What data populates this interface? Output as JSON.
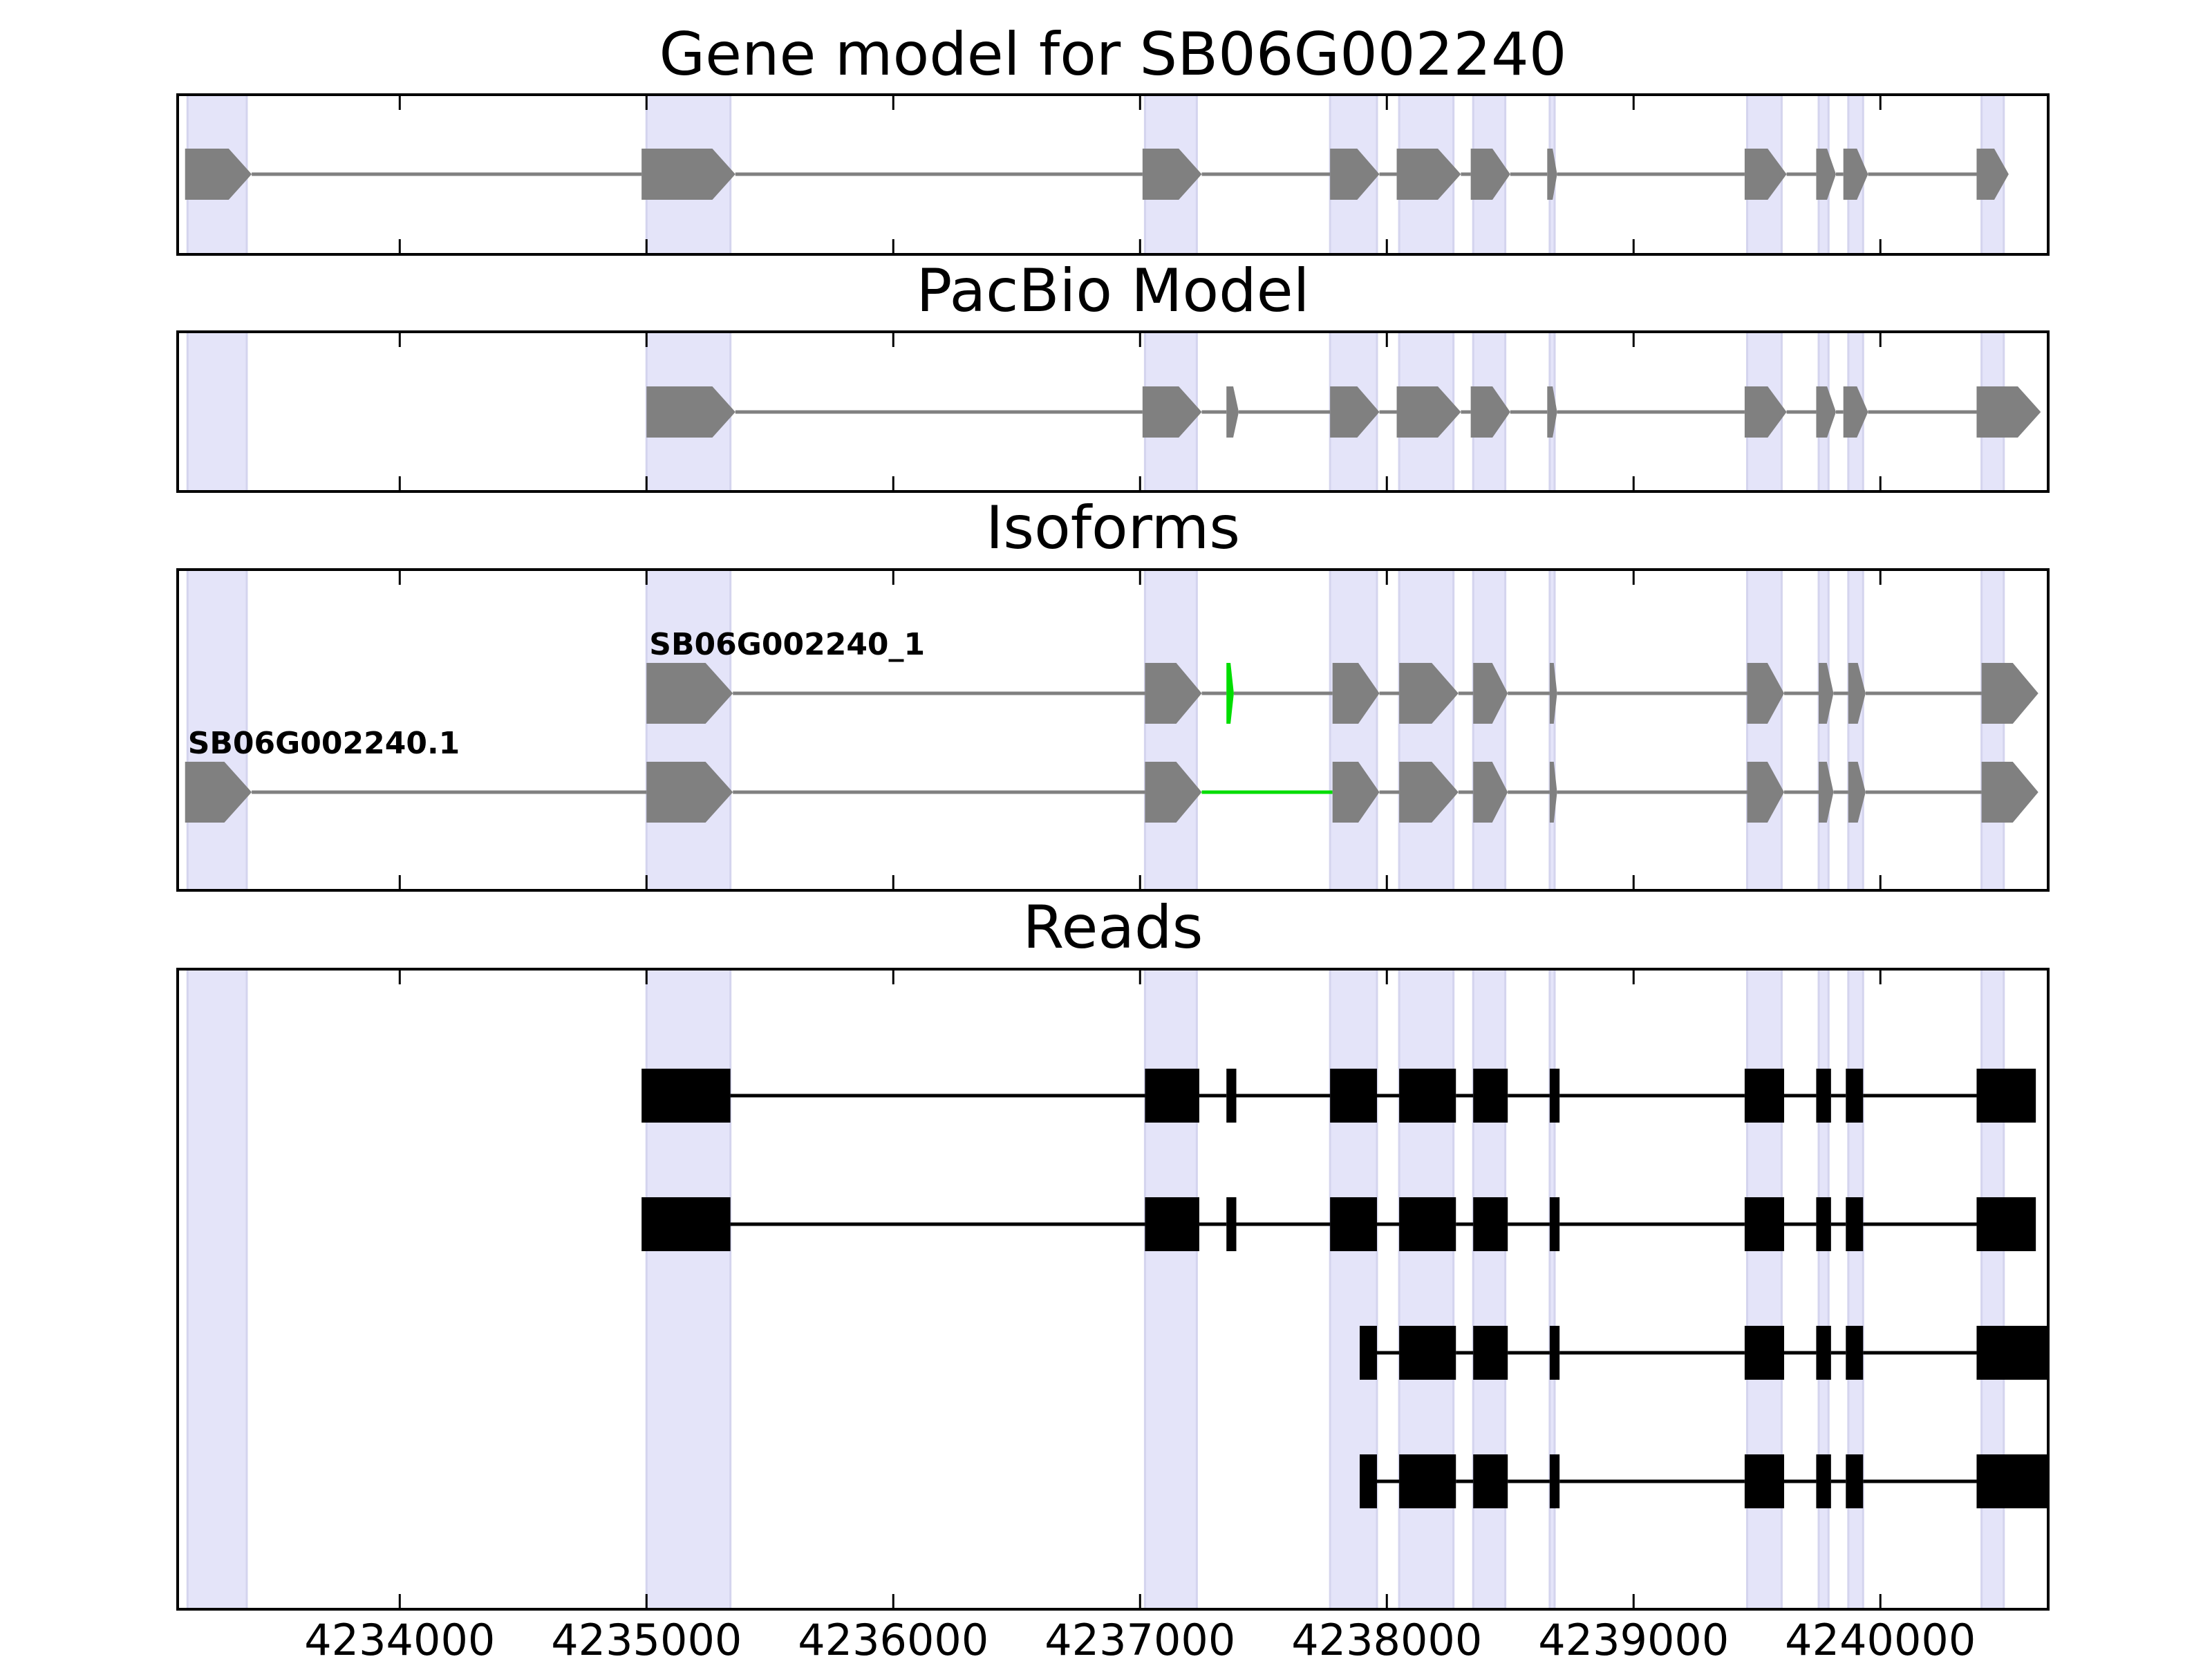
{
  "chart_data": {
    "type": "gene-track",
    "xlim": [
      4233100,
      4240680
    ],
    "xticks": [
      4234000,
      4235000,
      4236000,
      4237000,
      4238000,
      4239000,
      4240000
    ],
    "xtick_labels": [
      "4234000",
      "4235000",
      "4236000",
      "4237000",
      "4238000",
      "4239000",
      "4240000"
    ],
    "highlight_regions": [
      [
        4233140,
        4233380
      ],
      [
        4235000,
        4235340
      ],
      [
        4237020,
        4237230
      ],
      [
        4237770,
        4237960
      ],
      [
        4238050,
        4238270
      ],
      [
        4238350,
        4238480
      ],
      [
        4238660,
        4238680
      ],
      [
        4239460,
        4239600
      ],
      [
        4239750,
        4239790
      ],
      [
        4239870,
        4239930
      ],
      [
        4240410,
        4240500
      ]
    ],
    "colors": {
      "highlight": "#e4e4f9",
      "feature": "#808080",
      "read": "#000000",
      "alt_junction": "#00dd00"
    },
    "panels": [
      {
        "title": "Gene model for SB06G002240",
        "tracks": [
          {
            "label": "",
            "exons": [
              [
                4233130,
                4233400
              ],
              [
                4234980,
                4235360
              ],
              [
                4237010,
                4237250
              ],
              [
                4237770,
                4237970
              ],
              [
                4238040,
                4238300
              ],
              [
                4238340,
                4238500
              ],
              [
                4238650,
                4238690
              ],
              [
                4239450,
                4239620
              ],
              [
                4239740,
                4239820
              ],
              [
                4239850,
                4239950
              ],
              [
                4240390,
                4240520
              ]
            ]
          }
        ]
      },
      {
        "title": "PacBio Model",
        "tracks": [
          {
            "label": "",
            "exons": [
              [
                4235000,
                4235360
              ],
              [
                4237010,
                4237250
              ],
              [
                4237350,
                4237400
              ],
              [
                4237770,
                4237970
              ],
              [
                4238040,
                4238300
              ],
              [
                4238340,
                4238500
              ],
              [
                4238650,
                4238690
              ],
              [
                4239450,
                4239620
              ],
              [
                4239740,
                4239820
              ],
              [
                4239850,
                4239950
              ],
              [
                4240390,
                4240650
              ]
            ]
          }
        ]
      },
      {
        "title": "Isoforms",
        "tracks": [
          {
            "label": "SB06G002240_1",
            "exons": [
              [
                4235000,
                4235350
              ],
              [
                4237020,
                4237250
              ],
              [
                4237350,
                4237380
              ],
              [
                4237780,
                4237970
              ],
              [
                4238050,
                4238290
              ],
              [
                4238350,
                4238490
              ],
              [
                4238660,
                4238690
              ],
              [
                4239460,
                4239610
              ],
              [
                4239750,
                4239810
              ],
              [
                4239870,
                4239940
              ],
              [
                4240410,
                4240640
              ]
            ],
            "highlight_exons": [
              2
            ]
          },
          {
            "label": "SB06G002240.1",
            "exons": [
              [
                4233130,
                4233400
              ],
              [
                4235000,
                4235350
              ],
              [
                4237020,
                4237250
              ],
              [
                4237780,
                4237970
              ],
              [
                4238050,
                4238290
              ],
              [
                4238350,
                4238490
              ],
              [
                4238660,
                4238690
              ],
              [
                4239460,
                4239610
              ],
              [
                4239750,
                4239810
              ],
              [
                4239870,
                4239940
              ],
              [
                4240410,
                4240640
              ]
            ],
            "highlight_introns": [
              2
            ]
          }
        ]
      },
      {
        "title": "Reads",
        "tracks": [
          {
            "label": "",
            "exons": [
              [
                4234980,
                4235340
              ],
              [
                4237020,
                4237240
              ],
              [
                4237350,
                4237390
              ],
              [
                4237770,
                4237960
              ],
              [
                4238050,
                4238280
              ],
              [
                4238350,
                4238490
              ],
              [
                4238660,
                4238700
              ],
              [
                4239450,
                4239610
              ],
              [
                4239740,
                4239800
              ],
              [
                4239860,
                4239930
              ],
              [
                4240390,
                4240630
              ]
            ]
          },
          {
            "label": "",
            "exons": [
              [
                4234980,
                4235340
              ],
              [
                4237020,
                4237240
              ],
              [
                4237350,
                4237390
              ],
              [
                4237770,
                4237960
              ],
              [
                4238050,
                4238280
              ],
              [
                4238350,
                4238490
              ],
              [
                4238660,
                4238700
              ],
              [
                4239450,
                4239610
              ],
              [
                4239740,
                4239800
              ],
              [
                4239860,
                4239930
              ],
              [
                4240390,
                4240630
              ]
            ]
          },
          {
            "label": "",
            "exons": [
              [
                4237890,
                4237960
              ],
              [
                4238050,
                4238280
              ],
              [
                4238350,
                4238490
              ],
              [
                4238660,
                4238700
              ],
              [
                4239450,
                4239610
              ],
              [
                4239740,
                4239800
              ],
              [
                4239860,
                4239930
              ],
              [
                4240390,
                4240680
              ]
            ]
          },
          {
            "label": "",
            "exons": [
              [
                4237890,
                4237960
              ],
              [
                4238050,
                4238280
              ],
              [
                4238350,
                4238490
              ],
              [
                4238660,
                4238700
              ],
              [
                4239450,
                4239610
              ],
              [
                4239740,
                4239800
              ],
              [
                4239860,
                4239930
              ],
              [
                4240390,
                4240680
              ]
            ]
          }
        ]
      }
    ]
  }
}
